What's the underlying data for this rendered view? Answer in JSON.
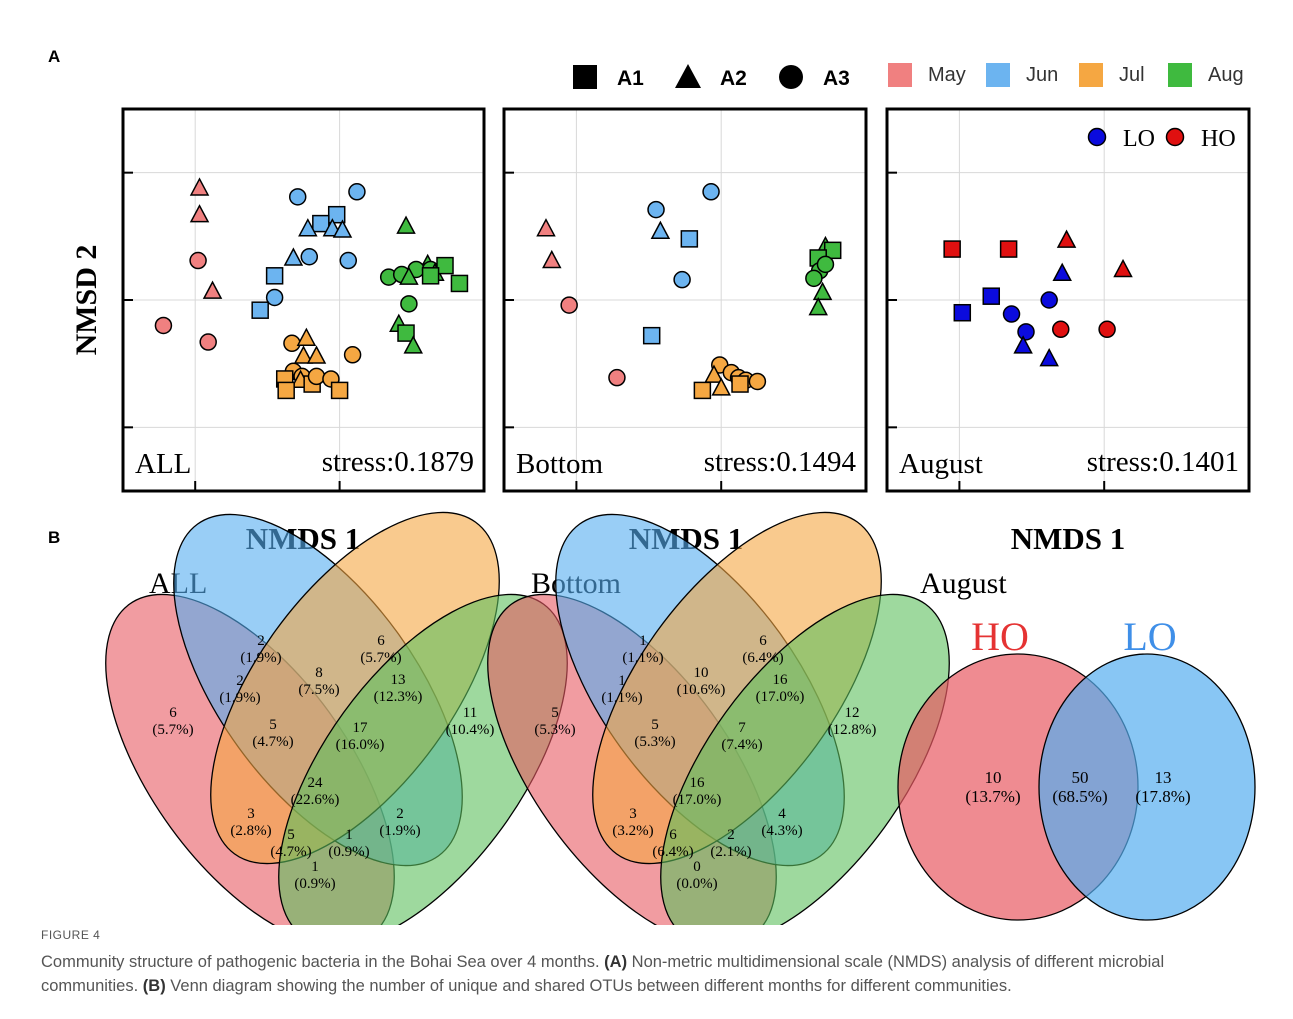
{
  "panels": {
    "A": "A",
    "B": "B"
  },
  "legend": {
    "shapes": [
      {
        "shape": "square",
        "label": "A1"
      },
      {
        "shape": "triangle",
        "label": "A2"
      },
      {
        "shape": "circle",
        "label": "A3"
      }
    ],
    "months": [
      {
        "label": "May",
        "color": "#f08080"
      },
      {
        "label": "Jun",
        "color": "#6cb4f0"
      },
      {
        "label": "Jul",
        "color": "#f5a742"
      },
      {
        "label": "Aug",
        "color": "#3fba3f"
      }
    ]
  },
  "colors": {
    "May": "#f08080",
    "Jun": "#6cb4f0",
    "Jul": "#f5a742",
    "Aug": "#3fba3f",
    "LO": "#0b0bdd",
    "HO": "#e01010"
  },
  "nmds": {
    "y_label": "NMSD 2",
    "x_label": "NMDS 1",
    "plots": [
      {
        "name": "ALL",
        "stress": "stress:0.1879"
      },
      {
        "name": "Bottom",
        "stress": "stress:0.1494"
      },
      {
        "name": "August",
        "stress": "stress:0.1401",
        "legend": [
          {
            "label": "LO",
            "color": "#0b0bdd"
          },
          {
            "label": "HO",
            "color": "#e01010"
          }
        ]
      }
    ]
  },
  "chart_data": [
    {
      "type": "scatter",
      "title": "ALL",
      "xlabel": "NMDS 1",
      "ylabel": "NMSD 2",
      "annotation": "stress:0.1879",
      "points": [
        {
          "m": "May",
          "s": "triangle",
          "x": 0.03,
          "y": 0.88
        },
        {
          "m": "May",
          "s": "triangle",
          "x": 0.03,
          "y": 0.67
        },
        {
          "m": "May",
          "s": "circle",
          "x": 0.02,
          "y": 0.31
        },
        {
          "m": "May",
          "s": "triangle",
          "x": 0.12,
          "y": 0.07
        },
        {
          "m": "May",
          "s": "circle",
          "x": -0.22,
          "y": -0.2
        },
        {
          "m": "May",
          "s": "circle",
          "x": 0.09,
          "y": -0.33
        },
        {
          "m": "Jun",
          "s": "circle",
          "x": 0.71,
          "y": 0.81
        },
        {
          "m": "Jun",
          "s": "circle",
          "x": 1.12,
          "y": 0.85
        },
        {
          "m": "Jun",
          "s": "square",
          "x": 0.98,
          "y": 0.67
        },
        {
          "m": "Jun",
          "s": "square",
          "x": 0.87,
          "y": 0.6
        },
        {
          "m": "Jun",
          "s": "triangle",
          "x": 0.78,
          "y": 0.56
        },
        {
          "m": "Jun",
          "s": "triangle",
          "x": 0.95,
          "y": 0.56
        },
        {
          "m": "Jun",
          "s": "triangle",
          "x": 1.02,
          "y": 0.55
        },
        {
          "m": "Jun",
          "s": "triangle",
          "x": 0.68,
          "y": 0.33
        },
        {
          "m": "Jun",
          "s": "circle",
          "x": 0.79,
          "y": 0.34
        },
        {
          "m": "Jun",
          "s": "circle",
          "x": 1.06,
          "y": 0.31
        },
        {
          "m": "Jun",
          "s": "square",
          "x": 0.55,
          "y": 0.19
        },
        {
          "m": "Jun",
          "s": "circle",
          "x": 0.55,
          "y": 0.02
        },
        {
          "m": "Jun",
          "s": "square",
          "x": 0.45,
          "y": -0.08
        },
        {
          "m": "Jul",
          "s": "circle",
          "x": 0.67,
          "y": -0.34
        },
        {
          "m": "Jul",
          "s": "triangle",
          "x": 0.77,
          "y": -0.3
        },
        {
          "m": "Jul",
          "s": "triangle",
          "x": 0.75,
          "y": -0.44
        },
        {
          "m": "Jul",
          "s": "triangle",
          "x": 0.84,
          "y": -0.44
        },
        {
          "m": "Jul",
          "s": "circle",
          "x": 1.09,
          "y": -0.43
        },
        {
          "m": "Jul",
          "s": "circle",
          "x": 0.68,
          "y": -0.56
        },
        {
          "m": "Jul",
          "s": "circle",
          "x": 0.74,
          "y": -0.6
        },
        {
          "m": "Jul",
          "s": "square",
          "x": 0.62,
          "y": -0.62
        },
        {
          "m": "Jul",
          "s": "triangle",
          "x": 0.73,
          "y": -0.63
        },
        {
          "m": "Jul",
          "s": "square",
          "x": 0.81,
          "y": -0.66
        },
        {
          "m": "Jul",
          "s": "circle",
          "x": 0.84,
          "y": -0.6
        },
        {
          "m": "Jul",
          "s": "circle",
          "x": 0.94,
          "y": -0.62
        },
        {
          "m": "Jul",
          "s": "square",
          "x": 0.63,
          "y": -0.71
        },
        {
          "m": "Jul",
          "s": "square",
          "x": 1.0,
          "y": -0.71
        },
        {
          "m": "Aug",
          "s": "triangle",
          "x": 1.46,
          "y": 0.58
        },
        {
          "m": "Aug",
          "s": "triangle",
          "x": 1.61,
          "y": 0.28
        },
        {
          "m": "Aug",
          "s": "circle",
          "x": 1.34,
          "y": 0.18
        },
        {
          "m": "Aug",
          "s": "circle",
          "x": 1.43,
          "y": 0.2
        },
        {
          "m": "Aug",
          "s": "circle",
          "x": 1.53,
          "y": 0.24
        },
        {
          "m": "Aug",
          "s": "circle",
          "x": 1.63,
          "y": 0.24
        },
        {
          "m": "Aug",
          "s": "triangle",
          "x": 1.48,
          "y": 0.18
        },
        {
          "m": "Aug",
          "s": "triangle",
          "x": 1.66,
          "y": 0.21
        },
        {
          "m": "Aug",
          "s": "square",
          "x": 1.73,
          "y": 0.27
        },
        {
          "m": "Aug",
          "s": "square",
          "x": 1.83,
          "y": 0.13
        },
        {
          "m": "Aug",
          "s": "square",
          "x": 1.63,
          "y": 0.19
        },
        {
          "m": "Aug",
          "s": "circle",
          "x": 1.48,
          "y": -0.03
        },
        {
          "m": "Aug",
          "s": "triangle",
          "x": 1.41,
          "y": -0.19
        },
        {
          "m": "Aug",
          "s": "square",
          "x": 1.46,
          "y": -0.26
        },
        {
          "m": "Aug",
          "s": "triangle",
          "x": 1.51,
          "y": -0.36
        }
      ]
    },
    {
      "type": "scatter",
      "title": "Bottom",
      "xlabel": "NMDS 1",
      "ylabel": "NMSD 2",
      "annotation": "stress:0.1494",
      "points": [
        {
          "m": "May",
          "s": "triangle",
          "x": -0.21,
          "y": 0.56
        },
        {
          "m": "May",
          "s": "triangle",
          "x": -0.17,
          "y": 0.31
        },
        {
          "m": "May",
          "s": "circle",
          "x": -0.05,
          "y": -0.04
        },
        {
          "m": "May",
          "s": "circle",
          "x": 0.28,
          "y": -0.61
        },
        {
          "m": "Jun",
          "s": "circle",
          "x": 0.55,
          "y": 0.71
        },
        {
          "m": "Jun",
          "s": "circle",
          "x": 0.93,
          "y": 0.85
        },
        {
          "m": "Jun",
          "s": "triangle",
          "x": 0.58,
          "y": 0.54
        },
        {
          "m": "Jun",
          "s": "square",
          "x": 0.78,
          "y": 0.48
        },
        {
          "m": "Jun",
          "s": "circle",
          "x": 0.73,
          "y": 0.16
        },
        {
          "m": "Jun",
          "s": "square",
          "x": 0.52,
          "y": -0.28
        },
        {
          "m": "Jul",
          "s": "circle",
          "x": 0.99,
          "y": -0.51
        },
        {
          "m": "Jul",
          "s": "circle",
          "x": 1.07,
          "y": -0.57
        },
        {
          "m": "Jul",
          "s": "triangle",
          "x": 0.95,
          "y": -0.59
        },
        {
          "m": "Jul",
          "s": "circle",
          "x": 1.12,
          "y": -0.61
        },
        {
          "m": "Jul",
          "s": "circle",
          "x": 1.17,
          "y": -0.63
        },
        {
          "m": "Jul",
          "s": "circle",
          "x": 1.25,
          "y": -0.64
        },
        {
          "m": "Jul",
          "s": "square",
          "x": 0.87,
          "y": -0.71
        },
        {
          "m": "Jul",
          "s": "triangle",
          "x": 1.0,
          "y": -0.69
        },
        {
          "m": "Jul",
          "s": "square",
          "x": 1.13,
          "y": -0.66
        },
        {
          "m": "Aug",
          "s": "triangle",
          "x": 1.72,
          "y": 0.42
        },
        {
          "m": "Aug",
          "s": "square",
          "x": 1.77,
          "y": 0.39
        },
        {
          "m": "Aug",
          "s": "square",
          "x": 1.67,
          "y": 0.33
        },
        {
          "m": "Aug",
          "s": "circle",
          "x": 1.68,
          "y": 0.23
        },
        {
          "m": "Aug",
          "s": "circle",
          "x": 1.72,
          "y": 0.28
        },
        {
          "m": "Aug",
          "s": "circle",
          "x": 1.64,
          "y": 0.17
        },
        {
          "m": "Aug",
          "s": "triangle",
          "x": 1.7,
          "y": 0.06
        },
        {
          "m": "Aug",
          "s": "triangle",
          "x": 1.67,
          "y": -0.06
        }
      ]
    },
    {
      "type": "scatter",
      "title": "August",
      "xlabel": "NMDS 1",
      "ylabel": "NMSD 2",
      "annotation": "stress:0.1401",
      "legend": [
        "LO",
        "HO"
      ],
      "points": [
        {
          "m": "HO",
          "s": "square",
          "x": -0.05,
          "y": 0.4
        },
        {
          "m": "HO",
          "s": "square",
          "x": 0.34,
          "y": 0.4
        },
        {
          "m": "HO",
          "s": "triangle",
          "x": 0.74,
          "y": 0.47
        },
        {
          "m": "HO",
          "s": "triangle",
          "x": 1.13,
          "y": 0.24
        },
        {
          "m": "HO",
          "s": "circle",
          "x": 0.7,
          "y": -0.23
        },
        {
          "m": "HO",
          "s": "circle",
          "x": 1.02,
          "y": -0.23
        },
        {
          "m": "LO",
          "s": "square",
          "x": 0.02,
          "y": -0.1
        },
        {
          "m": "LO",
          "s": "square",
          "x": 0.22,
          "y": 0.03
        },
        {
          "m": "LO",
          "s": "circle",
          "x": 0.36,
          "y": -0.11
        },
        {
          "m": "LO",
          "s": "circle",
          "x": 0.46,
          "y": -0.25
        },
        {
          "m": "LO",
          "s": "triangle",
          "x": 0.44,
          "y": -0.36
        },
        {
          "m": "LO",
          "s": "triangle",
          "x": 0.71,
          "y": 0.21
        },
        {
          "m": "LO",
          "s": "circle",
          "x": 0.62,
          "y": 0.0
        },
        {
          "m": "LO",
          "s": "triangle",
          "x": 0.62,
          "y": -0.46
        }
      ]
    }
  ],
  "venn": [
    {
      "title": "ALL",
      "regions": [
        {
          "n": "6",
          "p": "(5.7%)"
        },
        {
          "n": "2",
          "p": "(1.9%)"
        },
        {
          "n": "6",
          "p": "(5.7%)"
        },
        {
          "n": "11",
          "p": "(10.4%)"
        },
        {
          "n": "2",
          "p": "(1.9%)"
        },
        {
          "n": "8",
          "p": "(7.5%)"
        },
        {
          "n": "13",
          "p": "(12.3%)"
        },
        {
          "n": "5",
          "p": "(4.7%)"
        },
        {
          "n": "17",
          "p": "(16.0%)"
        },
        {
          "n": "24",
          "p": "(22.6%)"
        },
        {
          "n": "3",
          "p": "(2.8%)"
        },
        {
          "n": "2",
          "p": "(1.9%)"
        },
        {
          "n": "5",
          "p": "(4.7%)"
        },
        {
          "n": "1",
          "p": "(0.9%)"
        },
        {
          "n": "1",
          "p": "(0.9%)"
        }
      ]
    },
    {
      "title": "Bottom",
      "regions": [
        {
          "n": "5",
          "p": "(5.3%)"
        },
        {
          "n": "1",
          "p": "(1.1%)"
        },
        {
          "n": "6",
          "p": "(6.4%)"
        },
        {
          "n": "12",
          "p": "(12.8%)"
        },
        {
          "n": "1",
          "p": "(1.1%)"
        },
        {
          "n": "10",
          "p": "(10.6%)"
        },
        {
          "n": "16",
          "p": "(17.0%)"
        },
        {
          "n": "5",
          "p": "(5.3%)"
        },
        {
          "n": "7",
          "p": "(7.4%)"
        },
        {
          "n": "16",
          "p": "(17.0%)"
        },
        {
          "n": "3",
          "p": "(3.2%)"
        },
        {
          "n": "4",
          "p": "(4.3%)"
        },
        {
          "n": "6",
          "p": "(6.4%)"
        },
        {
          "n": "2",
          "p": "(2.1%)"
        },
        {
          "n": "0",
          "p": "(0.0%)"
        }
      ]
    },
    {
      "title": "August",
      "sets": [
        "HO",
        "LO"
      ],
      "regions": [
        {
          "n": "10",
          "p": "(13.7%)"
        },
        {
          "n": "50",
          "p": "(68.5%)"
        },
        {
          "n": "13",
          "p": "(17.8%)"
        }
      ]
    }
  ],
  "caption": {
    "label": "FIGURE 4",
    "line1": "Community structure of pathogenic bacteria in the Bohai Sea over 4 months.",
    "a_tag": "(A)",
    "a_text": "Non-metric multidimensional scale (NMDS) analysis of different microbial communities.",
    "b_tag": "(B)",
    "b_text": "Venn diagram showing the number of unique and shared OTUs between different months for different communities."
  }
}
